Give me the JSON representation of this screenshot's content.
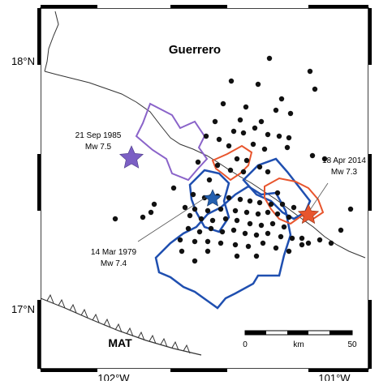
{
  "map": {
    "region_label": "Guerrero",
    "lat_labels": [
      "18°N",
      "17°N"
    ],
    "lon_labels": [
      "102°W",
      "101°W"
    ],
    "trench_label": "MAT",
    "scale": {
      "start": "0",
      "unit": "km",
      "end": "50"
    }
  },
  "events": [
    {
      "date": "21 Sep 1985",
      "magnitude": "Mw 7.5",
      "color": "#7b5fc4",
      "rupture_color": "#8a63c9"
    },
    {
      "date": "14 Mar 1979",
      "magnitude": "Mw 7.4",
      "color": "#2460b0",
      "rupture_color": "#1f4fb0"
    },
    {
      "date": "18 Apr 2014",
      "magnitude": "Mw 7.3",
      "color": "#e8552d",
      "rupture_color": "#e8552d"
    }
  ],
  "aftershock_color": "#111111",
  "coast_color": "#333333"
}
